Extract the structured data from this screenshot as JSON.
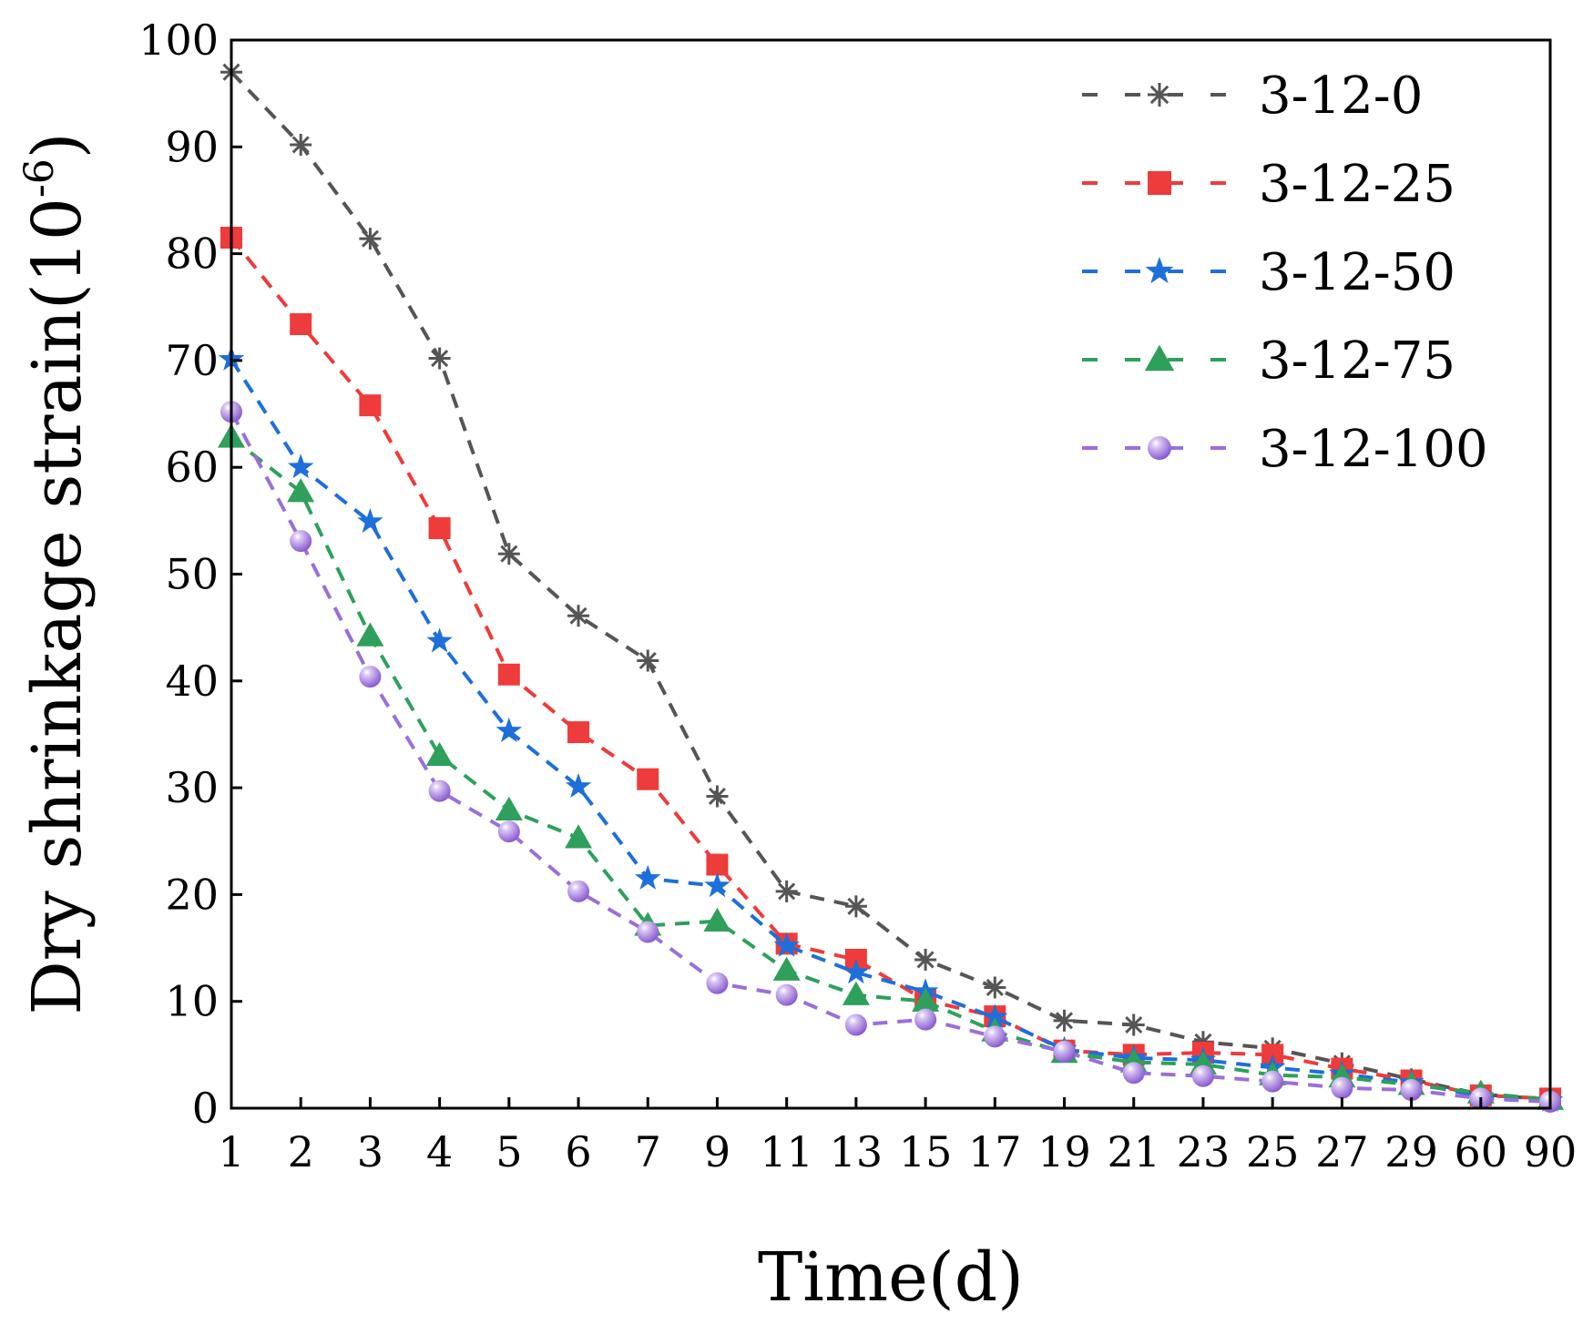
{
  "chart_data": {
    "type": "line",
    "title": "",
    "xlabel": "Time(d)",
    "ylabel_main": "Dry shrinkage strain(10",
    "ylabel_sup": "-6",
    "ylabel_close": ")",
    "ylim": [
      0,
      100
    ],
    "yticks": [
      0,
      10,
      20,
      30,
      40,
      50,
      60,
      70,
      80,
      90,
      100
    ],
    "categories": [
      "1",
      "2",
      "3",
      "4",
      "5",
      "6",
      "7",
      "9",
      "11",
      "13",
      "15",
      "17",
      "19",
      "21",
      "23",
      "25",
      "27",
      "29",
      "60",
      "90"
    ],
    "legend_position": "top-right",
    "grid": false,
    "series": [
      {
        "name": "3-12-0",
        "color": "#555555",
        "marker": "asterisk",
        "values": [
          97.0,
          90.2,
          81.4,
          70.2,
          51.9,
          46.1,
          41.9,
          29.2,
          20.3,
          18.9,
          13.9,
          11.3,
          8.2,
          7.8,
          6.2,
          5.6,
          4.2,
          2.7,
          1.3,
          0.8
        ]
      },
      {
        "name": "3-12-25",
        "color": "#ee3b3b",
        "marker": "square",
        "values": [
          81.5,
          73.4,
          65.8,
          54.3,
          40.6,
          35.2,
          30.8,
          22.8,
          15.4,
          13.9,
          10.1,
          8.6,
          5.4,
          5.0,
          5.2,
          5.0,
          3.7,
          2.6,
          1.2,
          0.9
        ]
      },
      {
        "name": "3-12-50",
        "color": "#1e6fd9",
        "marker": "star",
        "values": [
          70.1,
          60.0,
          54.9,
          43.7,
          35.3,
          30.1,
          21.5,
          20.8,
          15.2,
          12.7,
          10.9,
          8.5,
          5.5,
          4.7,
          4.5,
          3.8,
          3.2,
          2.4,
          1.1,
          0.7
        ]
      },
      {
        "name": "3-12-75",
        "color": "#2ea05c",
        "marker": "triangle",
        "values": [
          62.8,
          57.7,
          44.2,
          33.0,
          27.9,
          25.3,
          17.1,
          17.5,
          12.9,
          10.6,
          10.0,
          7.2,
          5.2,
          4.3,
          4.1,
          3.1,
          2.9,
          2.2,
          1.4,
          0.8
        ]
      },
      {
        "name": "3-12-100",
        "color": "#9b6fd9",
        "marker": "circle",
        "values": [
          65.2,
          53.1,
          40.4,
          29.7,
          25.9,
          20.3,
          16.5,
          11.7,
          10.6,
          7.8,
          8.3,
          6.7,
          5.3,
          3.3,
          3.0,
          2.5,
          1.9,
          1.7,
          0.9,
          0.6
        ]
      }
    ]
  }
}
